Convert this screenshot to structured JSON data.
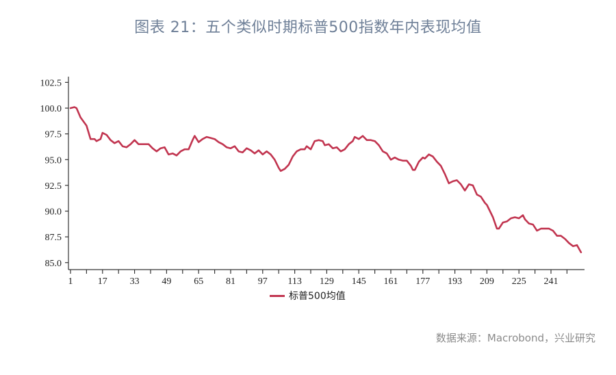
{
  "title": "图表 21：五个类似时期标普500指数年内表现均值",
  "source": "数据来源：Macrobond，兴业研究",
  "legend": [
    {
      "label": "标普500均值",
      "color": "#c1344f"
    }
  ],
  "colors": {
    "line": "#c1344f",
    "axis": "#333333",
    "title": "#6e7f97",
    "source": "#8a8a8a"
  },
  "chart_data": {
    "type": "line",
    "title": "图表 21：五个类似时期标普500指数年内表现均值",
    "xlabel": "",
    "ylabel": "",
    "ylim": [
      84.3,
      103.0
    ],
    "xlim": [
      1,
      256
    ],
    "grid": false,
    "legend_position": "bottom",
    "x_ticks": [
      1,
      17,
      33,
      49,
      65,
      81,
      97,
      113,
      129,
      145,
      161,
      177,
      193,
      209,
      225,
      241
    ],
    "y_ticks": [
      "85.0",
      "87.5",
      "90.0",
      "92.5",
      "95.0",
      "97.5",
      "100.0",
      "102.5"
    ],
    "series": [
      {
        "name": "标普500均值",
        "color": "#c1344f",
        "points": [
          [
            1,
            100.0
          ],
          [
            3,
            100.1
          ],
          [
            4,
            100.0
          ],
          [
            6,
            99.1
          ],
          [
            9,
            98.3
          ],
          [
            11,
            97.0
          ],
          [
            13,
            97.0
          ],
          [
            14,
            96.8
          ],
          [
            16,
            97.0
          ],
          [
            17,
            97.6
          ],
          [
            19,
            97.4
          ],
          [
            21,
            96.9
          ],
          [
            23,
            96.6
          ],
          [
            25,
            96.8
          ],
          [
            27,
            96.3
          ],
          [
            29,
            96.2
          ],
          [
            31,
            96.5
          ],
          [
            33,
            96.9
          ],
          [
            35,
            96.5
          ],
          [
            37,
            96.5
          ],
          [
            40,
            96.5
          ],
          [
            42,
            96.1
          ],
          [
            44,
            95.8
          ],
          [
            46,
            96.1
          ],
          [
            48,
            96.2
          ],
          [
            50,
            95.5
          ],
          [
            52,
            95.6
          ],
          [
            54,
            95.4
          ],
          [
            56,
            95.8
          ],
          [
            58,
            96.0
          ],
          [
            60,
            96.0
          ],
          [
            62,
            96.9
          ],
          [
            63,
            97.3
          ],
          [
            65,
            96.7
          ],
          [
            67,
            97.0
          ],
          [
            69,
            97.2
          ],
          [
            71,
            97.1
          ],
          [
            73,
            97.0
          ],
          [
            75,
            96.7
          ],
          [
            77,
            96.5
          ],
          [
            79,
            96.2
          ],
          [
            81,
            96.1
          ],
          [
            83,
            96.3
          ],
          [
            85,
            95.8
          ],
          [
            87,
            95.7
          ],
          [
            89,
            96.1
          ],
          [
            91,
            95.9
          ],
          [
            93,
            95.6
          ],
          [
            95,
            95.9
          ],
          [
            97,
            95.5
          ],
          [
            99,
            95.8
          ],
          [
            101,
            95.5
          ],
          [
            103,
            95.0
          ],
          [
            105,
            94.2
          ],
          [
            106,
            93.9
          ],
          [
            108,
            94.1
          ],
          [
            110,
            94.5
          ],
          [
            112,
            95.3
          ],
          [
            114,
            95.8
          ],
          [
            116,
            96.0
          ],
          [
            118,
            96.0
          ],
          [
            119,
            96.3
          ],
          [
            121,
            96.0
          ],
          [
            123,
            96.8
          ],
          [
            125,
            96.9
          ],
          [
            127,
            96.8
          ],
          [
            128,
            96.4
          ],
          [
            130,
            96.5
          ],
          [
            132,
            96.1
          ],
          [
            134,
            96.2
          ],
          [
            136,
            95.8
          ],
          [
            138,
            96.0
          ],
          [
            140,
            96.5
          ],
          [
            142,
            96.8
          ],
          [
            143,
            97.2
          ],
          [
            145,
            97.0
          ],
          [
            147,
            97.3
          ],
          [
            149,
            96.9
          ],
          [
            151,
            96.9
          ],
          [
            153,
            96.8
          ],
          [
            155,
            96.4
          ],
          [
            157,
            95.8
          ],
          [
            159,
            95.6
          ],
          [
            161,
            95.0
          ],
          [
            163,
            95.2
          ],
          [
            165,
            95.0
          ],
          [
            167,
            94.9
          ],
          [
            169,
            94.9
          ],
          [
            171,
            94.4
          ],
          [
            172,
            94.0
          ],
          [
            173,
            94.0
          ],
          [
            175,
            94.8
          ],
          [
            177,
            95.2
          ],
          [
            178,
            95.1
          ],
          [
            180,
            95.5
          ],
          [
            182,
            95.3
          ],
          [
            184,
            94.8
          ],
          [
            186,
            94.4
          ],
          [
            188,
            93.6
          ],
          [
            190,
            92.7
          ],
          [
            192,
            92.9
          ],
          [
            194,
            93.0
          ],
          [
            196,
            92.6
          ],
          [
            198,
            92.0
          ],
          [
            200,
            92.6
          ],
          [
            202,
            92.5
          ],
          [
            204,
            91.6
          ],
          [
            206,
            91.4
          ],
          [
            208,
            90.8
          ],
          [
            209,
            90.6
          ],
          [
            211,
            89.8
          ],
          [
            212,
            89.4
          ],
          [
            214,
            88.3
          ],
          [
            215,
            88.3
          ],
          [
            217,
            88.9
          ],
          [
            219,
            89.0
          ],
          [
            221,
            89.3
          ],
          [
            223,
            89.4
          ],
          [
            225,
            89.3
          ],
          [
            227,
            89.6
          ],
          [
            228,
            89.2
          ],
          [
            230,
            88.8
          ],
          [
            232,
            88.7
          ],
          [
            234,
            88.1
          ],
          [
            236,
            88.3
          ],
          [
            238,
            88.3
          ],
          [
            240,
            88.3
          ],
          [
            242,
            88.1
          ],
          [
            244,
            87.6
          ],
          [
            246,
            87.6
          ],
          [
            248,
            87.3
          ],
          [
            250,
            86.9
          ],
          [
            252,
            86.6
          ],
          [
            254,
            86.7
          ],
          [
            256,
            86.0
          ]
        ]
      }
    ]
  }
}
